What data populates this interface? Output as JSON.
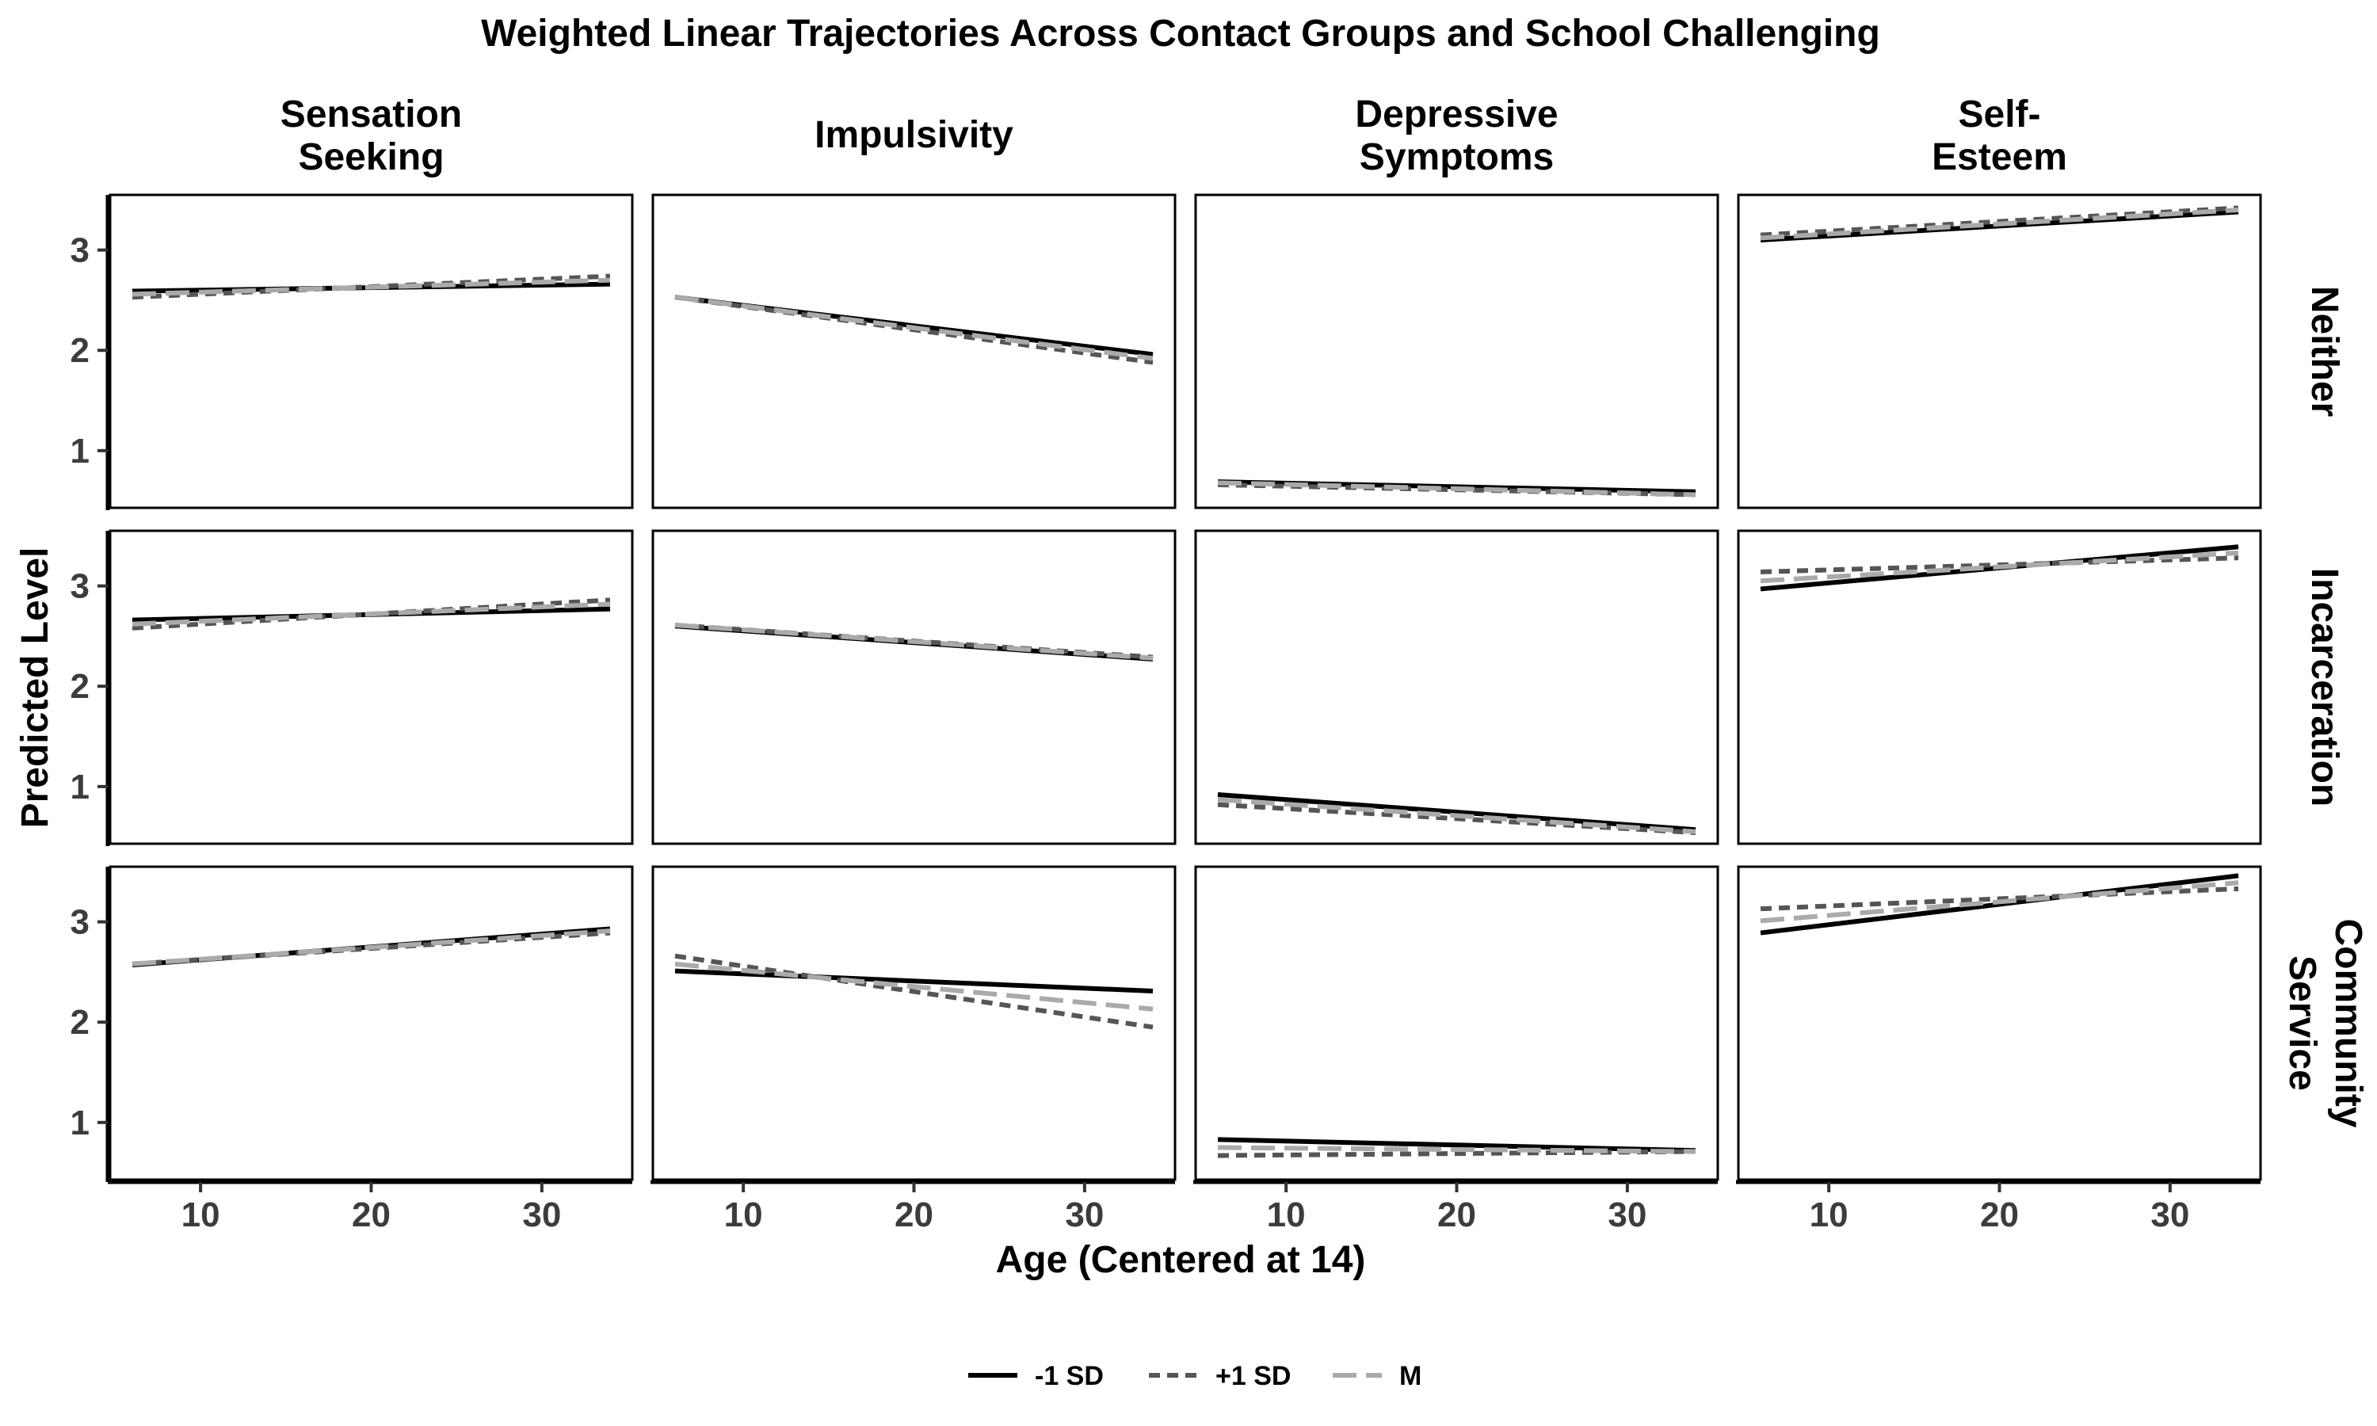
{
  "chart_data": {
    "type": "line",
    "title": "Weighted Linear Trajectories Across Contact Groups and School Challenging",
    "xlabel": "Age (Centered at 14)",
    "ylabel": "Predicted Level",
    "xlim": [
      4.7,
      35.3
    ],
    "ylim": [
      0.43,
      3.55
    ],
    "x_ticks": [
      10,
      20,
      30
    ],
    "y_ticks": [
      1,
      2,
      3
    ],
    "grid": false,
    "legend_position": "bottom",
    "columns": [
      {
        "key": "ss",
        "label_lines": [
          "Sensation",
          "Seeking"
        ]
      },
      {
        "key": "imp",
        "label_lines": [
          "Impulsivity"
        ]
      },
      {
        "key": "dep",
        "label_lines": [
          "Depressive",
          "Symptoms"
        ]
      },
      {
        "key": "se",
        "label_lines": [
          "Self-",
          "Esteem"
        ]
      }
    ],
    "rows": [
      {
        "key": "neither",
        "label_lines": [
          "Neither"
        ]
      },
      {
        "key": "incarceration",
        "label_lines": [
          "Incarceration"
        ]
      },
      {
        "key": "community_service",
        "label_lines": [
          "Community",
          "Service"
        ]
      }
    ],
    "series": [
      {
        "key": "minus1sd",
        "name": "-1 SD",
        "color": "#000000",
        "dash": "solid"
      },
      {
        "key": "plus1sd",
        "name": "+1 SD",
        "color": "#555555",
        "dash": "dashed"
      },
      {
        "key": "mean",
        "name": "M",
        "color": "#aaaaaa",
        "dash": "longdash"
      }
    ],
    "x": [
      6,
      34
    ],
    "panels": [
      {
        "row": "neither",
        "col": "ss",
        "values": {
          "minus1sd": [
            2.59,
            2.66
          ],
          "plus1sd": [
            2.53,
            2.74
          ],
          "mean": [
            2.56,
            2.7
          ]
        }
      },
      {
        "row": "neither",
        "col": "imp",
        "values": {
          "minus1sd": [
            2.53,
            1.96
          ],
          "plus1sd": [
            2.53,
            1.88
          ],
          "mean": [
            2.53,
            1.92
          ]
        }
      },
      {
        "row": "neither",
        "col": "dep",
        "values": {
          "minus1sd": [
            0.69,
            0.59
          ],
          "plus1sd": [
            0.66,
            0.56
          ],
          "mean": [
            0.68,
            0.56
          ]
        }
      },
      {
        "row": "neither",
        "col": "se",
        "values": {
          "minus1sd": [
            3.1,
            3.38
          ],
          "plus1sd": [
            3.15,
            3.42
          ],
          "mean": [
            3.12,
            3.4
          ]
        }
      },
      {
        "row": "incarceration",
        "col": "ss",
        "values": {
          "minus1sd": [
            2.66,
            2.77
          ],
          "plus1sd": [
            2.58,
            2.86
          ],
          "mean": [
            2.62,
            2.82
          ]
        }
      },
      {
        "row": "incarceration",
        "col": "imp",
        "values": {
          "minus1sd": [
            2.6,
            2.27
          ],
          "plus1sd": [
            2.61,
            2.29
          ],
          "mean": [
            2.61,
            2.28
          ]
        }
      },
      {
        "row": "incarceration",
        "col": "dep",
        "values": {
          "minus1sd": [
            0.92,
            0.57
          ],
          "plus1sd": [
            0.82,
            0.54
          ],
          "mean": [
            0.87,
            0.55
          ]
        }
      },
      {
        "row": "incarceration",
        "col": "se",
        "values": {
          "minus1sd": [
            2.97,
            3.39
          ],
          "plus1sd": [
            3.14,
            3.28
          ],
          "mean": [
            3.05,
            3.33
          ]
        }
      },
      {
        "row": "community_service",
        "col": "ss",
        "values": {
          "minus1sd": [
            2.57,
            2.93
          ],
          "plus1sd": [
            2.58,
            2.89
          ],
          "mean": [
            2.58,
            2.91
          ]
        }
      },
      {
        "row": "community_service",
        "col": "imp",
        "values": {
          "minus1sd": [
            2.51,
            2.31
          ],
          "plus1sd": [
            2.66,
            1.95
          ],
          "mean": [
            2.58,
            2.13
          ]
        }
      },
      {
        "row": "community_service",
        "col": "dep",
        "values": {
          "minus1sd": [
            0.83,
            0.72
          ],
          "plus1sd": [
            0.67,
            0.71
          ],
          "mean": [
            0.75,
            0.71
          ]
        }
      },
      {
        "row": "community_service",
        "col": "se",
        "values": {
          "minus1sd": [
            2.89,
            3.46
          ],
          "plus1sd": [
            3.13,
            3.33
          ],
          "mean": [
            3.01,
            3.39
          ]
        }
      }
    ]
  }
}
